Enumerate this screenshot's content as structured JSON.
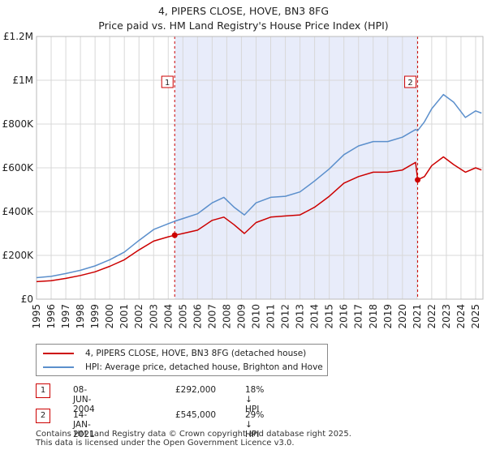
{
  "header": {
    "title": "4, PIPERS CLOSE, HOVE, BN3 8FG",
    "subtitle": "Price paid vs. HM Land Registry's House Price Index (HPI)"
  },
  "chart_data": {
    "type": "line",
    "xlim": [
      1995,
      2025.5
    ],
    "ylim": [
      0,
      1200000
    ],
    "y_ticks": [
      {
        "value": 0,
        "label": "£0"
      },
      {
        "value": 200000,
        "label": "£200K"
      },
      {
        "value": 400000,
        "label": "£400K"
      },
      {
        "value": 600000,
        "label": "£600K"
      },
      {
        "value": 800000,
        "label": "£800K"
      },
      {
        "value": 1000000,
        "label": "£1M"
      },
      {
        "value": 1200000,
        "label": "£1.2M"
      }
    ],
    "x_ticks": [
      "1995",
      "1996",
      "1997",
      "1998",
      "1999",
      "2000",
      "2001",
      "2002",
      "2003",
      "2004",
      "2005",
      "2006",
      "2007",
      "2008",
      "2009",
      "2010",
      "2011",
      "2012",
      "2013",
      "2014",
      "2015",
      "2016",
      "2017",
      "2018",
      "2019",
      "2020",
      "2021",
      "2022",
      "2023",
      "2024",
      "2025"
    ],
    "shaded_region": [
      2004.44,
      2021.04
    ],
    "series": [
      {
        "name": "4, PIPERS CLOSE, HOVE, BN3 8FG (detached house)",
        "color": "#cc0000",
        "points": [
          [
            1995.0,
            80000
          ],
          [
            1996.0,
            84000
          ],
          [
            1997.0,
            95000
          ],
          [
            1998.0,
            108000
          ],
          [
            1999.0,
            125000
          ],
          [
            2000.0,
            150000
          ],
          [
            2001.0,
            180000
          ],
          [
            2002.0,
            225000
          ],
          [
            2003.0,
            265000
          ],
          [
            2004.0,
            285000
          ],
          [
            2004.44,
            292000
          ],
          [
            2005.0,
            300000
          ],
          [
            2006.0,
            315000
          ],
          [
            2007.0,
            360000
          ],
          [
            2007.8,
            375000
          ],
          [
            2008.5,
            340000
          ],
          [
            2009.2,
            300000
          ],
          [
            2010.0,
            350000
          ],
          [
            2011.0,
            375000
          ],
          [
            2012.0,
            380000
          ],
          [
            2013.0,
            385000
          ],
          [
            2014.0,
            420000
          ],
          [
            2015.0,
            470000
          ],
          [
            2016.0,
            530000
          ],
          [
            2017.0,
            560000
          ],
          [
            2018.0,
            580000
          ],
          [
            2019.0,
            580000
          ],
          [
            2020.0,
            590000
          ],
          [
            2020.9,
            625000
          ],
          [
            2021.04,
            545000
          ],
          [
            2021.5,
            560000
          ],
          [
            2022.0,
            610000
          ],
          [
            2022.8,
            650000
          ],
          [
            2023.5,
            615000
          ],
          [
            2024.3,
            580000
          ],
          [
            2025.0,
            600000
          ],
          [
            2025.4,
            590000
          ]
        ]
      },
      {
        "name": "HPI: Average price, detached house, Brighton and Hove",
        "color": "#5b8fcc",
        "points": [
          [
            1995.0,
            98000
          ],
          [
            1996.0,
            104000
          ],
          [
            1997.0,
            117000
          ],
          [
            1998.0,
            132000
          ],
          [
            1999.0,
            152000
          ],
          [
            2000.0,
            180000
          ],
          [
            2001.0,
            215000
          ],
          [
            2002.0,
            268000
          ],
          [
            2003.0,
            318000
          ],
          [
            2004.0,
            345000
          ],
          [
            2004.44,
            356000
          ],
          [
            2005.0,
            368000
          ],
          [
            2006.0,
            390000
          ],
          [
            2007.0,
            440000
          ],
          [
            2007.8,
            465000
          ],
          [
            2008.5,
            420000
          ],
          [
            2009.2,
            385000
          ],
          [
            2010.0,
            440000
          ],
          [
            2011.0,
            465000
          ],
          [
            2012.0,
            470000
          ],
          [
            2013.0,
            490000
          ],
          [
            2014.0,
            540000
          ],
          [
            2015.0,
            595000
          ],
          [
            2016.0,
            660000
          ],
          [
            2017.0,
            700000
          ],
          [
            2018.0,
            720000
          ],
          [
            2019.0,
            720000
          ],
          [
            2020.0,
            740000
          ],
          [
            2020.9,
            775000
          ],
          [
            2021.04,
            770000
          ],
          [
            2021.5,
            810000
          ],
          [
            2022.0,
            870000
          ],
          [
            2022.8,
            935000
          ],
          [
            2023.5,
            900000
          ],
          [
            2024.3,
            830000
          ],
          [
            2025.0,
            860000
          ],
          [
            2025.4,
            850000
          ]
        ]
      }
    ],
    "sales": [
      {
        "id": "1",
        "x": 2004.44,
        "value": 292000
      },
      {
        "id": "2",
        "x": 2021.04,
        "value": 545000
      }
    ]
  },
  "legend": {
    "items": [
      {
        "label": "4, PIPERS CLOSE, HOVE, BN3 8FG (detached house)",
        "color": "#cc0000"
      },
      {
        "label": "HPI: Average price, detached house, Brighton and Hove",
        "color": "#5b8fcc"
      }
    ]
  },
  "sales_table": [
    {
      "id": "1",
      "date": "08-JUN-2004",
      "price": "£292,000",
      "hpi": "18% ↓ HPI"
    },
    {
      "id": "2",
      "date": "14-JAN-2021",
      "price": "£545,000",
      "hpi": "29% ↓ HPI"
    }
  ],
  "footer": {
    "line1": "Contains HM Land Registry data © Crown copyright and database right 2025.",
    "line2": "This data is licensed under the Open Government Licence v3.0."
  }
}
